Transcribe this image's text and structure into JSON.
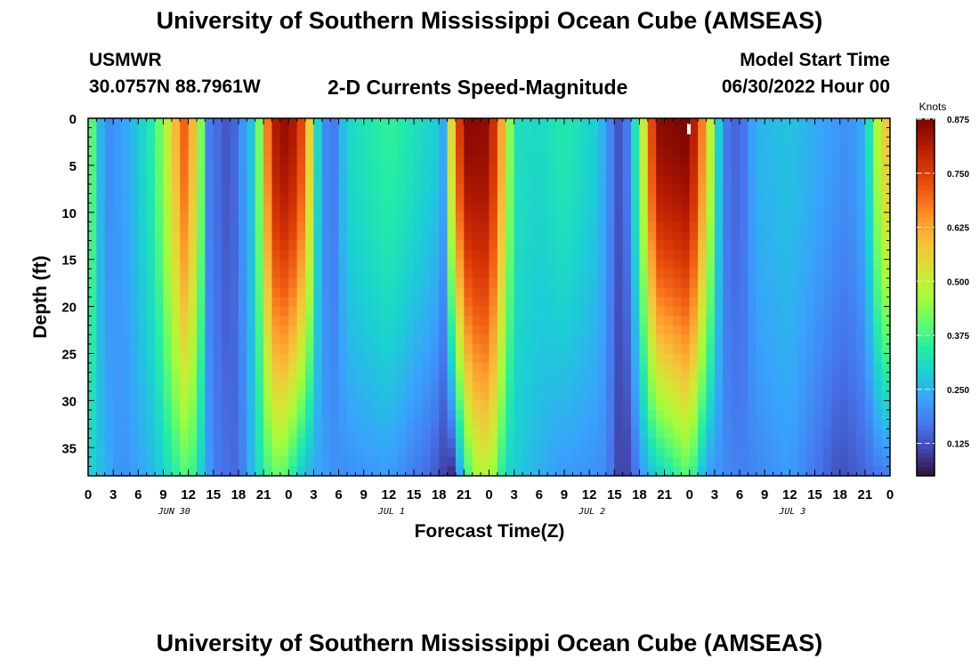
{
  "header": {
    "title": "University of Southern Mississippi Ocean Cube (AMSEAS)",
    "station": "USMWR",
    "coords": "30.0757N  88.7961W",
    "plot_title": "2-D Currents Speed-Magnitude",
    "model_start_label": "Model Start Time",
    "model_start_value": "06/30/2022 Hour 00"
  },
  "footer": {
    "title": "University of Southern Mississippi Ocean Cube (AMSEAS)"
  },
  "chart_data": {
    "type": "heatmap",
    "title": "2-D Currents Speed-Magnitude",
    "xlabel": "Forecast Time(Z)",
    "ylabel": "Depth (ft)",
    "x_ticks": [
      "0",
      "3",
      "6",
      "9",
      "12",
      "15",
      "18",
      "21",
      "0",
      "3",
      "6",
      "9",
      "12",
      "15",
      "18",
      "21",
      "0",
      "3",
      "6",
      "9",
      "12",
      "15",
      "18",
      "21",
      "0",
      "3",
      "6",
      "9",
      "12",
      "15",
      "18",
      "21",
      "0"
    ],
    "x_hour_range": [
      0,
      96
    ],
    "date_labels": [
      {
        "label": "JUN 30",
        "hour": 10
      },
      {
        "label": "JUL 1",
        "hour": 36
      },
      {
        "label": "JUL 2",
        "hour": 60
      },
      {
        "label": "JUL 3",
        "hour": 84
      }
    ],
    "y_ticks": [
      0,
      5,
      10,
      15,
      20,
      25,
      30,
      35
    ],
    "ylim": [
      0,
      38
    ],
    "y_inverted": true,
    "colorbar": {
      "unit": "Knots",
      "ticks": [
        "0.875",
        "0.750",
        "0.625",
        "0.500",
        "0.375",
        "0.250",
        "0.125"
      ],
      "range": [
        0.05,
        0.875
      ],
      "colormap": [
        "#30123b",
        "#4145ab",
        "#4675ed",
        "#39a2fc",
        "#1bcfd4",
        "#24eca6",
        "#61fc6c",
        "#a4fc3b",
        "#d1e834",
        "#f3c63a",
        "#fe9b2d",
        "#f36315",
        "#d93806",
        "#b11901",
        "#7a0403"
      ]
    },
    "surface_speed_knots": [
      {
        "hour": 0,
        "v": 0.5
      },
      {
        "hour": 1,
        "v": 0.28
      },
      {
        "hour": 2.5,
        "v": 0.2
      },
      {
        "hour": 5,
        "v": 0.24
      },
      {
        "hour": 8,
        "v": 0.36
      },
      {
        "hour": 10,
        "v": 0.55
      },
      {
        "hour": 11.5,
        "v": 0.7
      },
      {
        "hour": 13,
        "v": 0.55
      },
      {
        "hour": 14.5,
        "v": 0.18
      },
      {
        "hour": 17,
        "v": 0.12
      },
      {
        "hour": 20,
        "v": 0.3
      },
      {
        "hour": 22,
        "v": 0.8
      },
      {
        "hour": 24,
        "v": 0.86
      },
      {
        "hour": 26,
        "v": 0.7
      },
      {
        "hour": 27.5,
        "v": 0.3
      },
      {
        "hour": 29,
        "v": 0.14
      },
      {
        "hour": 31,
        "v": 0.3
      },
      {
        "hour": 36,
        "v": 0.36
      },
      {
        "hour": 42,
        "v": 0.28
      },
      {
        "hour": 43,
        "v": 0.2
      },
      {
        "hour": 43.5,
        "v": 0.55
      },
      {
        "hour": 45,
        "v": 0.86
      },
      {
        "hour": 48,
        "v": 0.85
      },
      {
        "hour": 50,
        "v": 0.55
      },
      {
        "hour": 51,
        "v": 0.32
      },
      {
        "hour": 54,
        "v": 0.3
      },
      {
        "hour": 57,
        "v": 0.34
      },
      {
        "hour": 61,
        "v": 0.28
      },
      {
        "hour": 64,
        "v": 0.1
      },
      {
        "hour": 66,
        "v": 0.4
      },
      {
        "hour": 68,
        "v": 0.85
      },
      {
        "hour": 72,
        "v": 0.875
      },
      {
        "hour": 74,
        "v": 0.6
      },
      {
        "hour": 76,
        "v": 0.18
      },
      {
        "hour": 78,
        "v": 0.14
      },
      {
        "hour": 80,
        "v": 0.25
      },
      {
        "hour": 84,
        "v": 0.27
      },
      {
        "hour": 87,
        "v": 0.24
      },
      {
        "hour": 89,
        "v": 0.22
      },
      {
        "hour": 91,
        "v": 0.2
      },
      {
        "hour": 93,
        "v": 0.25
      },
      {
        "hour": 95,
        "v": 0.55
      },
      {
        "hour": 96,
        "v": 0.6
      }
    ],
    "bottom_speed_knots": [
      {
        "hour": 0,
        "v": 0.3
      },
      {
        "hour": 4,
        "v": 0.2
      },
      {
        "hour": 8,
        "v": 0.26
      },
      {
        "hour": 12,
        "v": 0.4
      },
      {
        "hour": 15,
        "v": 0.18
      },
      {
        "hour": 18,
        "v": 0.15
      },
      {
        "hour": 21,
        "v": 0.35
      },
      {
        "hour": 23,
        "v": 0.42
      },
      {
        "hour": 26,
        "v": 0.25
      },
      {
        "hour": 30,
        "v": 0.2
      },
      {
        "hour": 36,
        "v": 0.22
      },
      {
        "hour": 41,
        "v": 0.15
      },
      {
        "hour": 43.5,
        "v": 0.08
      },
      {
        "hour": 46,
        "v": 0.45
      },
      {
        "hour": 48,
        "v": 0.5
      },
      {
        "hour": 50,
        "v": 0.3
      },
      {
        "hour": 56,
        "v": 0.22
      },
      {
        "hour": 62,
        "v": 0.2
      },
      {
        "hour": 64,
        "v": 0.08
      },
      {
        "hour": 67,
        "v": 0.25
      },
      {
        "hour": 72,
        "v": 0.4
      },
      {
        "hour": 74,
        "v": 0.22
      },
      {
        "hour": 78,
        "v": 0.18
      },
      {
        "hour": 84,
        "v": 0.22
      },
      {
        "hour": 90,
        "v": 0.12
      },
      {
        "hour": 96,
        "v": 0.18
      }
    ]
  }
}
